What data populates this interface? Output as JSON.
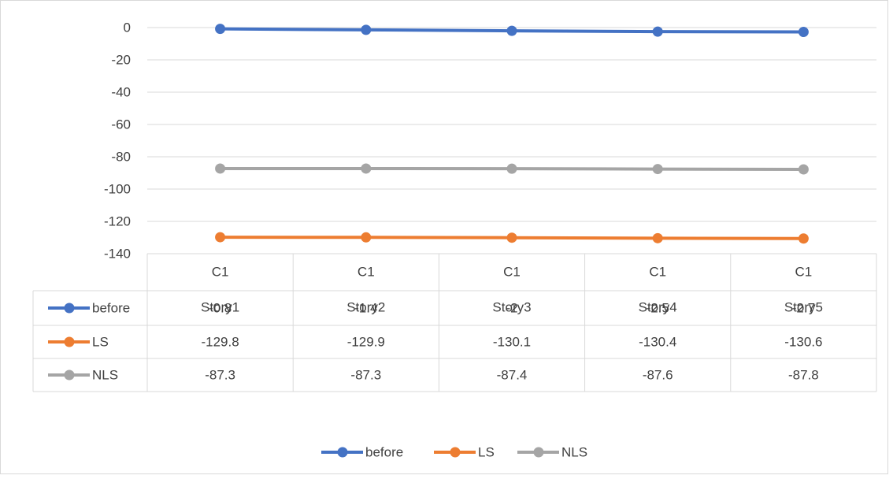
{
  "chart_data": {
    "type": "line",
    "title": "",
    "xlabel": "",
    "ylabel": "",
    "categories": [
      {
        "top": "C1",
        "bottom": "Story1"
      },
      {
        "top": "C1",
        "bottom": "Story2"
      },
      {
        "top": "C1",
        "bottom": "Story3"
      },
      {
        "top": "C1",
        "bottom": "Story4"
      },
      {
        "top": "C1",
        "bottom": "Story5"
      }
    ],
    "series": [
      {
        "name": "before",
        "color": "#4472c4",
        "values": [
          -0.8,
          -1.4,
          -2,
          -2.5,
          -2.7
        ],
        "labels": [
          "-0.8",
          "-1.4",
          "-2",
          "-2.5",
          "-2.7"
        ]
      },
      {
        "name": "LS",
        "color": "#ed7d31",
        "values": [
          -129.8,
          -129.9,
          -130.1,
          -130.4,
          -130.6
        ],
        "labels": [
          "-129.8",
          "-129.9",
          "-130.1",
          "-130.4",
          "-130.6"
        ]
      },
      {
        "name": "NLS",
        "color": "#a5a5a5",
        "values": [
          -87.3,
          -87.3,
          -87.4,
          -87.6,
          -87.8
        ],
        "labels": [
          "-87.3",
          "-87.3",
          "-87.4",
          "-87.6",
          "-87.8"
        ]
      }
    ],
    "ylim": [
      -140,
      0
    ],
    "yticks": [
      0,
      -20,
      -40,
      -60,
      -80,
      -100,
      -120,
      -140
    ],
    "grid": true,
    "data_table": true,
    "legend_position": "bottom",
    "gridline_color": "#d9d9d9"
  }
}
